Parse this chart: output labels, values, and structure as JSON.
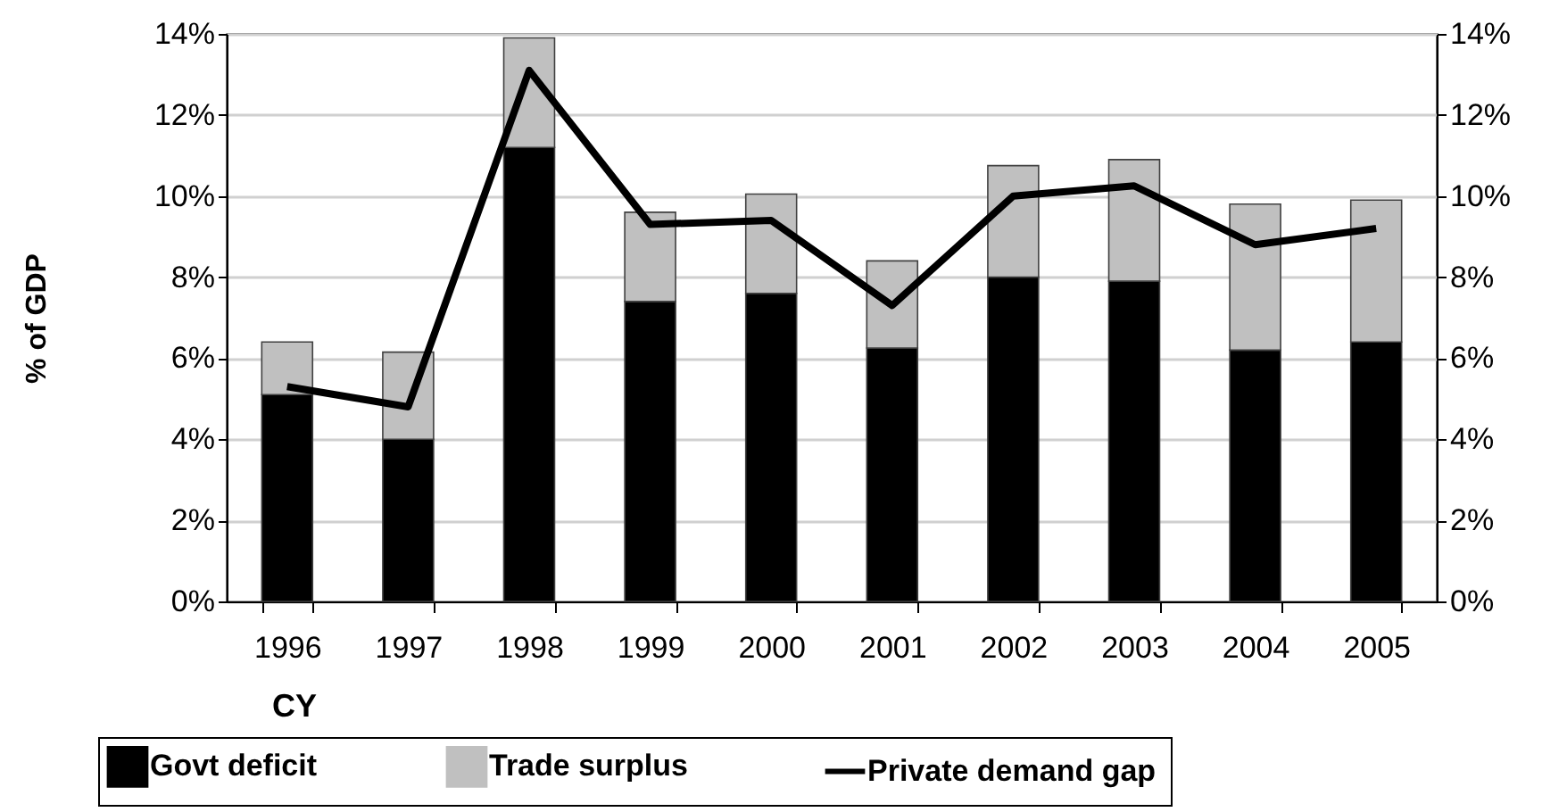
{
  "chart_data": {
    "type": "bar",
    "stacked": true,
    "xlabel": "CY",
    "ylabel": "% of GDP",
    "categories": [
      "1996",
      "1997",
      "1998",
      "1999",
      "2000",
      "2001",
      "2002",
      "2003",
      "2004",
      "2005"
    ],
    "series": [
      {
        "name": "Govt deficit",
        "color": "#000000",
        "values": [
          5.1,
          4.0,
          11.2,
          7.4,
          7.6,
          6.25,
          8.0,
          7.9,
          6.2,
          6.4
        ]
      },
      {
        "name": "Trade surplus",
        "color": "#c0c0c0",
        "values": [
          1.3,
          2.15,
          2.7,
          2.2,
          2.45,
          2.15,
          2.75,
          3.0,
          3.6,
          3.5
        ]
      },
      {
        "name": "Private demand gap",
        "type": "line",
        "axis": "y2",
        "color": "#000000",
        "values": [
          5.3,
          4.8,
          13.1,
          9.3,
          9.4,
          7.3,
          10.0,
          10.25,
          8.8,
          9.2
        ]
      }
    ],
    "ylim": [
      0,
      14
    ],
    "yticks": [
      {
        "value": 0,
        "label": "0%"
      },
      {
        "value": 2,
        "label": "2%"
      },
      {
        "value": 4,
        "label": "4%"
      },
      {
        "value": 6,
        "label": "6%"
      },
      {
        "value": 8,
        "label": "8%"
      },
      {
        "value": 10,
        "label": "10%"
      },
      {
        "value": 12,
        "label": "12%"
      },
      {
        "value": 14,
        "label": "14%"
      }
    ],
    "y2lim": [
      0,
      14
    ],
    "y2ticks": [
      {
        "value": 0,
        "label": "0%"
      },
      {
        "value": 2,
        "label": "2%"
      },
      {
        "value": 4,
        "label": "4%"
      },
      {
        "value": 6,
        "label": "6%"
      },
      {
        "value": 8,
        "label": "8%"
      },
      {
        "value": 10,
        "label": "10%"
      },
      {
        "value": 12,
        "label": "12%"
      },
      {
        "value": 14,
        "label": "14%"
      }
    ],
    "grid": "y",
    "legend": "bottom",
    "line_style": "solid",
    "marker": "none"
  }
}
